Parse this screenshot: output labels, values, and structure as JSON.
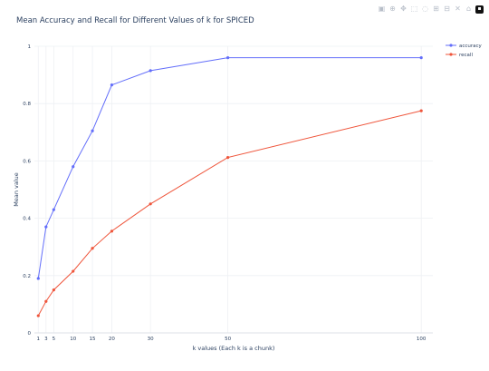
{
  "modebar": {
    "buttons": [
      "camera-icon",
      "zoom-icon",
      "pan-icon",
      "box-select-icon",
      "lasso-select-icon",
      "zoom-in-icon",
      "zoom-out-icon",
      "autoscale-icon",
      "reset-axes-icon",
      "plotly-logo-icon"
    ]
  },
  "chart_data": {
    "type": "line",
    "title": "Mean Accuracy and Recall for Different Values of k for SPICED",
    "xlabel": "k values (Each k is a chunk)",
    "ylabel": "Mean value",
    "x": [
      1,
      3,
      5,
      10,
      15,
      20,
      30,
      50,
      100
    ],
    "x_tick_labels": [
      "1",
      "3",
      "5",
      "10",
      "15",
      "20",
      "30",
      "50",
      "100"
    ],
    "y_ticks": [
      0,
      0.2,
      0.4,
      0.6,
      0.8,
      1
    ],
    "y_tick_labels": [
      "0",
      "0.2",
      "0.4",
      "0.6",
      "0.8",
      "1"
    ],
    "ylim": [
      0,
      1
    ],
    "grid": true,
    "legend_position": "top-right",
    "series": [
      {
        "name": "accuracy",
        "color": "#636efa",
        "values": [
          0.19,
          0.37,
          0.43,
          0.58,
          0.705,
          0.865,
          0.915,
          0.96,
          0.96
        ]
      },
      {
        "name": "recall",
        "color": "#ef553b",
        "values": [
          0.06,
          0.11,
          0.15,
          0.215,
          0.295,
          0.355,
          0.45,
          0.612,
          0.775
        ]
      }
    ]
  }
}
